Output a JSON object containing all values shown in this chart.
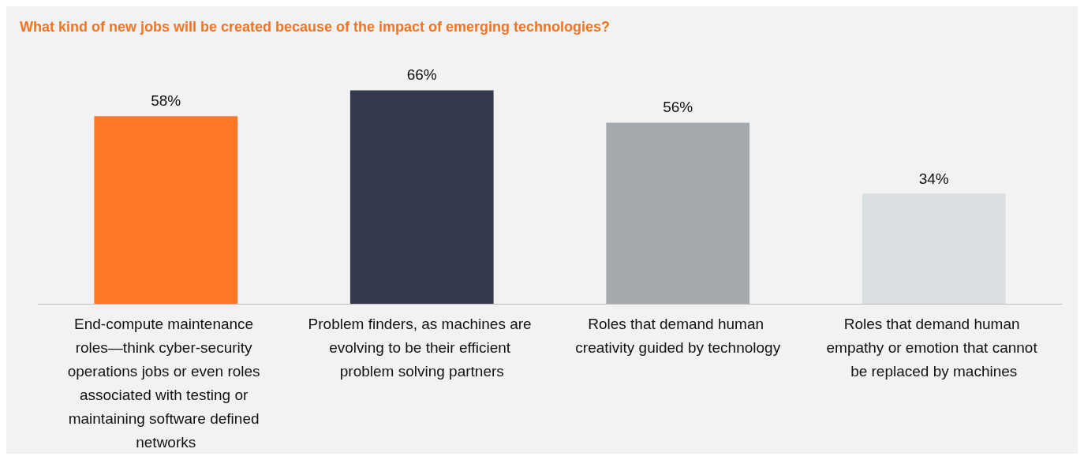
{
  "chart_data": {
    "type": "bar",
    "title": "What kind of new jobs will be created because of the impact of emerging technologies?",
    "categories": [
      "End-compute maintenance roles—think cyber-security operations jobs or even roles associated with testing or maintaining software defined networks",
      "Problem finders, as machines are evolving to be their efficient problem solving partners",
      "Roles that demand human creativity guided by technology",
      "Roles that demand human empathy or emotion that cannot be replaced by machines"
    ],
    "values": [
      58,
      66,
      56,
      34
    ],
    "colors": [
      "#fd7828",
      "#333a4e",
      "#a4aaad",
      "#dadfe1"
    ],
    "value_labels": [
      "58%",
      "66%",
      "56%",
      "34%"
    ]
  }
}
